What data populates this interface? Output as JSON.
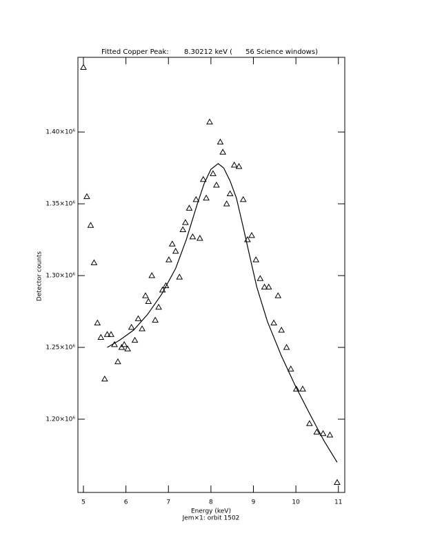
{
  "chart_data": {
    "type": "scatter",
    "title": "Fitted Copper Peak:       8.30212 keV (      56 Science windows)",
    "xlabel": "Energy (keV)",
    "subtitle": "Jem×1: orbit 1502",
    "ylabel": "Detector counts",
    "xlim": [
      4.87,
      11.15
    ],
    "ylim": [
      1149000,
      1452000
    ],
    "xticks": [
      5,
      6,
      7,
      8,
      9,
      10,
      11
    ],
    "yticks": [
      {
        "value": 1200000,
        "label": "1.20×10⁶"
      },
      {
        "value": 1250000,
        "label": "1.25×10⁶"
      },
      {
        "value": 1300000,
        "label": "1.30×10⁶"
      },
      {
        "value": 1350000,
        "label": "1.35×10⁶"
      },
      {
        "value": 1400000,
        "label": "1.40×10⁶"
      }
    ],
    "series": [
      {
        "type": "scatter",
        "color": "#000000",
        "x": [
          5.0,
          5.08,
          5.17,
          5.25,
          5.33,
          5.41,
          5.5,
          5.56,
          5.65,
          5.73,
          5.81,
          5.9,
          5.96,
          6.04,
          6.13,
          6.21,
          6.29,
          6.38,
          6.46,
          6.53,
          6.61,
          6.69,
          6.77,
          6.86,
          6.94,
          7.01,
          7.09,
          7.17,
          7.26,
          7.34,
          7.4,
          7.49,
          7.57,
          7.65,
          7.74,
          7.82,
          7.89,
          7.97,
          8.05,
          8.13,
          8.22,
          8.28,
          8.37,
          8.45,
          8.55,
          8.66,
          8.76,
          8.86,
          8.96,
          9.06,
          9.16,
          9.26,
          9.36,
          9.48,
          9.58,
          9.66,
          9.78,
          9.88,
          10.01,
          10.16,
          10.32,
          10.49,
          10.64,
          10.8,
          10.97
        ],
        "values": [
          1445000,
          1355000,
          1335000,
          1309000,
          1267000,
          1257000,
          1228000,
          1259000,
          1259000,
          1252000,
          1240000,
          1250000,
          1252000,
          1249000,
          1264000,
          1255000,
          1270000,
          1263000,
          1286000,
          1282000,
          1300000,
          1269000,
          1278000,
          1290000,
          1293000,
          1311000,
          1322000,
          1317000,
          1299000,
          1332000,
          1337000,
          1347000,
          1327000,
          1353000,
          1326000,
          1367000,
          1354000,
          1407000,
          1371000,
          1363000,
          1393000,
          1386000,
          1350000,
          1357000,
          1377000,
          1376000,
          1353000,
          1325000,
          1328000,
          1311000,
          1298000,
          1292000,
          1292000,
          1267000,
          1286000,
          1262000,
          1250000,
          1235000,
          1221000,
          1221000,
          1197000,
          1191000,
          1190000,
          1189000,
          1156000
        ]
      },
      {
        "type": "line",
        "color": "#000000",
        "x": [
          5.56,
          5.85,
          6.18,
          6.51,
          6.84,
          7.17,
          7.42,
          7.67,
          7.84,
          8.0,
          8.17,
          8.3,
          8.45,
          8.6,
          8.75,
          8.91,
          9.08,
          9.33,
          9.66,
          9.99,
          10.32,
          10.66,
          10.97
        ],
        "values": [
          1250000,
          1255000,
          1262000,
          1273000,
          1287000,
          1305000,
          1325000,
          1349000,
          1364000,
          1374000,
          1378000,
          1375000,
          1366000,
          1354000,
          1335000,
          1314000,
          1292000,
          1268000,
          1244000,
          1223000,
          1204000,
          1185000,
          1170000
        ]
      }
    ]
  }
}
